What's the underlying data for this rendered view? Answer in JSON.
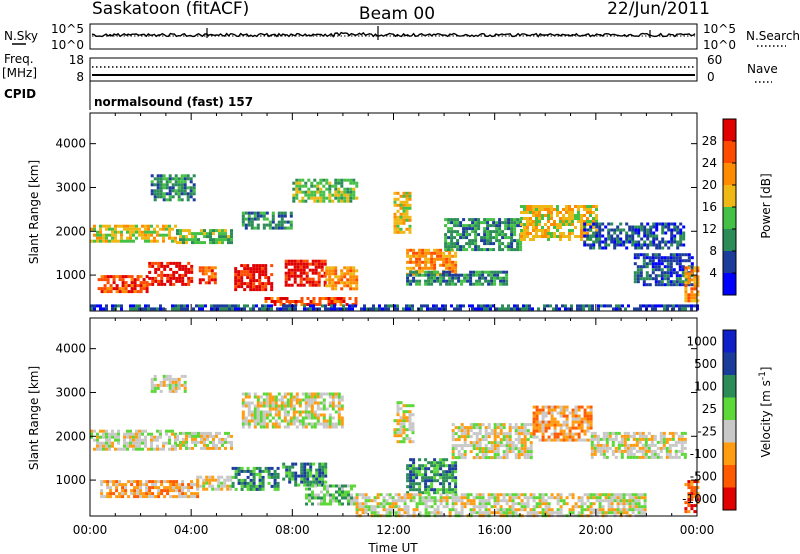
{
  "header": {
    "station": "Saskatoon (fitACF)",
    "beam": "Beam 00",
    "date": "22/Jun/2011"
  },
  "top_panels": {
    "nsky_label": "N.Sky",
    "nsearch_label": "N.Search",
    "nsky_ticks": [
      "10^5",
      "10^0"
    ],
    "nsearch_ticks": [
      "10^5",
      "10^0"
    ],
    "freq_label": "Freq.",
    "freq_unit": "[MHz]",
    "freq_ticks": [
      "18",
      "8"
    ],
    "nave_label": "Nave",
    "nave_ticks": [
      "60",
      "0"
    ],
    "cpid_label": "CPID",
    "cpid_value": "normalsound (fast) 157"
  },
  "colors": {
    "power": [
      "#0000ff",
      "#1c3c9c",
      "#2c8c58",
      "#44c044",
      "#f0b814",
      "#ff8c00",
      "#ff4b00",
      "#e00000"
    ],
    "velocity": [
      "#1020c8",
      "#1c3c9c",
      "#2c8c58",
      "#5cd838",
      "#c8c8c8",
      "#ff9c10",
      "#ff5a00",
      "#e00000"
    ]
  },
  "chart_data": [
    {
      "type": "heatmap",
      "panel": "power",
      "ylabel": "Slant Range [km]",
      "xlabel": "Time UT",
      "x_ticks": [
        "00:00",
        "04:00",
        "08:00",
        "12:00",
        "16:00",
        "20:00",
        "00:00"
      ],
      "y_ticks": [
        1000,
        2000,
        3000,
        4000
      ],
      "xlim_hours": [
        0,
        24
      ],
      "ylim_km": [
        180,
        4700
      ],
      "colorbar": {
        "label": "Power [dB]",
        "ticks": [
          4,
          8,
          12,
          16,
          20,
          24,
          28
        ],
        "range": [
          0,
          32
        ]
      },
      "regions": [
        {
          "t0": 0.0,
          "t1": 3.4,
          "r0": 1750,
          "r1": 2150,
          "level": 4
        },
        {
          "t0": 3.4,
          "t1": 5.6,
          "r0": 1750,
          "r1": 2050,
          "level": 3
        },
        {
          "t0": 0.3,
          "t1": 2.3,
          "r0": 650,
          "r1": 1000,
          "level": 6
        },
        {
          "t0": 2.3,
          "t1": 4.0,
          "r0": 800,
          "r1": 1300,
          "level": 7
        },
        {
          "t0": 4.3,
          "t1": 5.0,
          "r0": 800,
          "r1": 1200,
          "level": 6
        },
        {
          "t0": 5.7,
          "t1": 7.2,
          "r0": 700,
          "r1": 1250,
          "level": 7
        },
        {
          "t0": 7.7,
          "t1": 9.3,
          "r0": 800,
          "r1": 1350,
          "level": 7
        },
        {
          "t0": 9.3,
          "t1": 10.5,
          "r0": 700,
          "r1": 1200,
          "level": 5
        },
        {
          "t0": 6.9,
          "t1": 10.5,
          "r0": 300,
          "r1": 500,
          "level": 6
        },
        {
          "t0": 2.4,
          "t1": 4.1,
          "r0": 2750,
          "r1": 3300,
          "level": 2
        },
        {
          "t0": 6.0,
          "t1": 8.0,
          "r0": 2100,
          "r1": 2450,
          "level": 2
        },
        {
          "t0": 8.0,
          "t1": 10.5,
          "r0": 2700,
          "r1": 3200,
          "level": 3
        },
        {
          "t0": 12.0,
          "t1": 12.7,
          "r0": 2000,
          "r1": 2900,
          "level": 4
        },
        {
          "t0": 12.5,
          "t1": 14.5,
          "r0": 1000,
          "r1": 1600,
          "level": 5
        },
        {
          "t0": 12.5,
          "t1": 16.5,
          "r0": 800,
          "r1": 1100,
          "level": 2
        },
        {
          "t0": 14.0,
          "t1": 17.0,
          "r0": 1600,
          "r1": 2300,
          "level": 2
        },
        {
          "t0": 17.0,
          "t1": 20.0,
          "r0": 1800,
          "r1": 2600,
          "level": 4
        },
        {
          "t0": 19.5,
          "t1": 23.5,
          "r0": 1600,
          "r1": 2200,
          "level": 1
        },
        {
          "t0": 21.5,
          "t1": 23.8,
          "r0": 800,
          "r1": 1500,
          "level": 1
        },
        {
          "t0": 23.5,
          "t1": 24.0,
          "r0": 400,
          "r1": 1200,
          "level": 5
        },
        {
          "t0": 0.0,
          "t1": 24.0,
          "r0": 200,
          "r1": 330,
          "level": 1
        }
      ]
    },
    {
      "type": "heatmap",
      "panel": "velocity",
      "ylabel": "Slant Range [km]",
      "xlabel": "Time UT",
      "x_ticks": [
        "00:00",
        "04:00",
        "08:00",
        "12:00",
        "16:00",
        "20:00",
        "00:00"
      ],
      "y_ticks": [
        1000,
        2000,
        3000,
        4000
      ],
      "xlim_hours": [
        0,
        24
      ],
      "ylim_km": [
        180,
        4700
      ],
      "colorbar": {
        "label": "Velocity [m s^-1]",
        "ticks": [
          "1000",
          "500",
          "100",
          "25",
          "-25",
          "-100",
          "-500",
          "-1000"
        ]
      },
      "regions": [
        {
          "t0": 0.0,
          "t1": 3.4,
          "r0": 1700,
          "r1": 2150,
          "level": 4
        },
        {
          "t0": 3.4,
          "t1": 5.6,
          "r0": 1700,
          "r1": 2100,
          "level": 4
        },
        {
          "t0": 0.4,
          "t1": 4.2,
          "r0": 600,
          "r1": 1000,
          "level": 5
        },
        {
          "t0": 4.2,
          "t1": 5.6,
          "r0": 800,
          "r1": 1100,
          "level": 4
        },
        {
          "t0": 5.6,
          "t1": 7.4,
          "r0": 800,
          "r1": 1300,
          "level": 2
        },
        {
          "t0": 7.6,
          "t1": 9.3,
          "r0": 900,
          "r1": 1400,
          "level": 2
        },
        {
          "t0": 8.5,
          "t1": 10.5,
          "r0": 450,
          "r1": 900,
          "level": 3
        },
        {
          "t0": 6.0,
          "t1": 10.0,
          "r0": 2200,
          "r1": 3000,
          "level": 4
        },
        {
          "t0": 2.4,
          "t1": 3.8,
          "r0": 3000,
          "r1": 3400,
          "level": 4
        },
        {
          "t0": 12.0,
          "t1": 12.8,
          "r0": 1900,
          "r1": 2800,
          "level": 4
        },
        {
          "t0": 12.5,
          "t1": 14.5,
          "r0": 700,
          "r1": 1500,
          "level": 2
        },
        {
          "t0": 14.3,
          "t1": 17.5,
          "r0": 1500,
          "r1": 2300,
          "level": 4
        },
        {
          "t0": 17.5,
          "t1": 19.8,
          "r0": 1900,
          "r1": 2700,
          "level": 5
        },
        {
          "t0": 19.8,
          "t1": 23.5,
          "r0": 1500,
          "r1": 2100,
          "level": 4
        },
        {
          "t0": 23.5,
          "t1": 24.0,
          "r0": 300,
          "r1": 1000,
          "level": 6
        },
        {
          "t0": 10.5,
          "t1": 22.0,
          "r0": 200,
          "r1": 700,
          "level": 4
        }
      ]
    }
  ]
}
